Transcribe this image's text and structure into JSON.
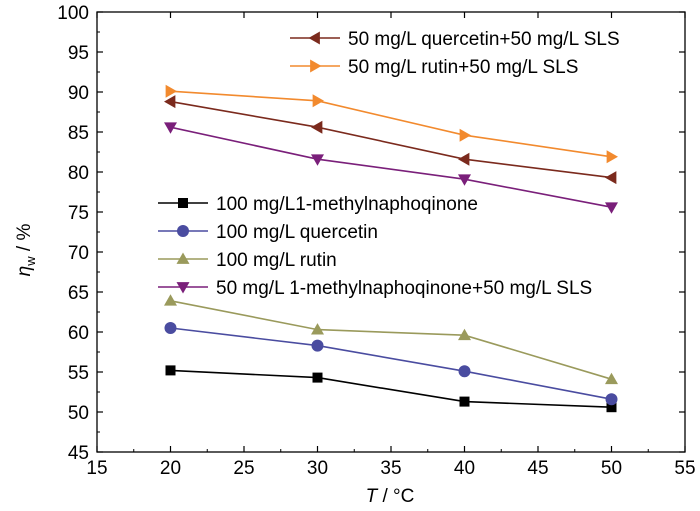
{
  "chart_data": {
    "type": "line",
    "x": [
      20,
      30,
      40,
      50
    ],
    "xlim": [
      15,
      55
    ],
    "ylim": [
      45,
      100
    ],
    "xticks": [
      15,
      20,
      25,
      30,
      35,
      40,
      45,
      50,
      55
    ],
    "yticks": [
      45,
      50,
      55,
      60,
      65,
      70,
      75,
      80,
      85,
      90,
      95,
      100
    ],
    "xlabel": {
      "var": "T",
      "unit": " / °C"
    },
    "ylabel": {
      "var": "η",
      "sub": "w",
      "unit": " / %"
    },
    "grid": false,
    "series": [
      {
        "name": "50 mg/L quercetin+50 mg/L SLS",
        "color": "#7b2a1d",
        "marker": "triangle-left",
        "values": [
          88.8,
          85.6,
          81.6,
          79.3
        ]
      },
      {
        "name": "50 mg/L rutin+50 mg/L SLS",
        "color": "#f28a2e",
        "marker": "triangle-right",
        "values": [
          90.1,
          88.9,
          84.6,
          81.9
        ]
      },
      {
        "name": "100 mg/L1-methylnaphoqinone",
        "color": "#000000",
        "marker": "square",
        "values": [
          55.2,
          54.3,
          51.3,
          50.6
        ]
      },
      {
        "name": "100 mg/L quercetin",
        "color": "#4a4ca0",
        "marker": "circle",
        "values": [
          60.5,
          58.3,
          55.1,
          51.6
        ]
      },
      {
        "name": "100 mg/L rutin",
        "color": "#9a9a5c",
        "marker": "triangle-up",
        "values": [
          63.9,
          60.3,
          59.6,
          54.1
        ]
      },
      {
        "name": "50 mg/L 1-methylnaphoqinone+50 mg/L SLS",
        "color": "#7a1f7a",
        "marker": "triangle-down",
        "values": [
          85.6,
          81.6,
          79.1,
          75.6
        ]
      }
    ],
    "legends": [
      {
        "placement": "top-right",
        "series_indices": [
          0,
          1
        ]
      },
      {
        "placement": "center-left",
        "series_indices": [
          2,
          3,
          4,
          5
        ]
      }
    ]
  }
}
